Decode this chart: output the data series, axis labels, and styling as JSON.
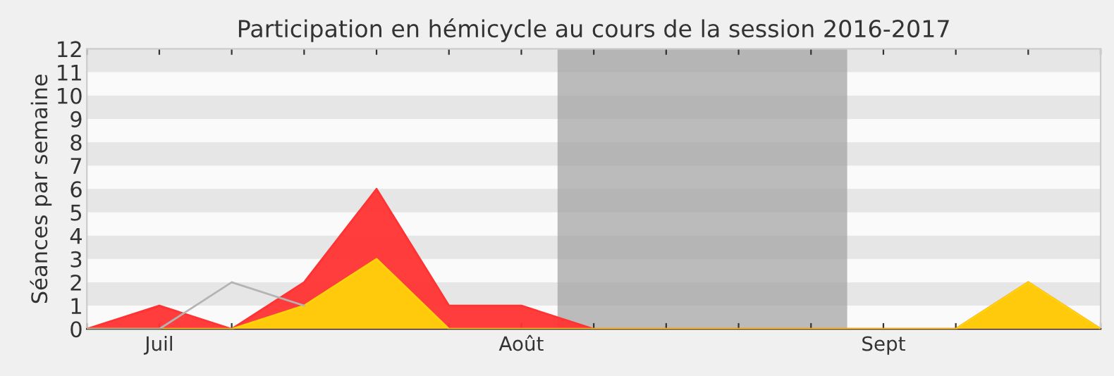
{
  "chart_data": {
    "type": "area",
    "title": "Participation en hémicycle au cours de la session 2016-2017",
    "ylabel": "Séances par semaine",
    "categories": [
      null,
      "Juil",
      null,
      null,
      null,
      null,
      "Août",
      null,
      null,
      null,
      null,
      "Sept",
      null,
      null,
      null
    ],
    "series": [
      {
        "type": "line",
        "color": "#b4b4b4",
        "values": [
          0,
          0,
          2,
          1,
          null,
          null,
          null,
          null,
          null,
          null,
          null,
          null,
          null,
          null,
          null
        ]
      },
      {
        "color": "#ff3333",
        "values": [
          0,
          1,
          0,
          2,
          6,
          1,
          1,
          0,
          0,
          0,
          0,
          0,
          0,
          2,
          0
        ]
      },
      {
        "color": "#ffd20a",
        "values": [
          0,
          0,
          0,
          1,
          3,
          0,
          0,
          0,
          0,
          0,
          0,
          0,
          0,
          2,
          0
        ]
      }
    ],
    "ylim": [
      0,
      12
    ],
    "yticks": [
      0,
      1,
      2,
      3,
      4,
      5,
      6,
      7,
      8,
      9,
      10,
      11,
      12
    ],
    "legend": false
  }
}
